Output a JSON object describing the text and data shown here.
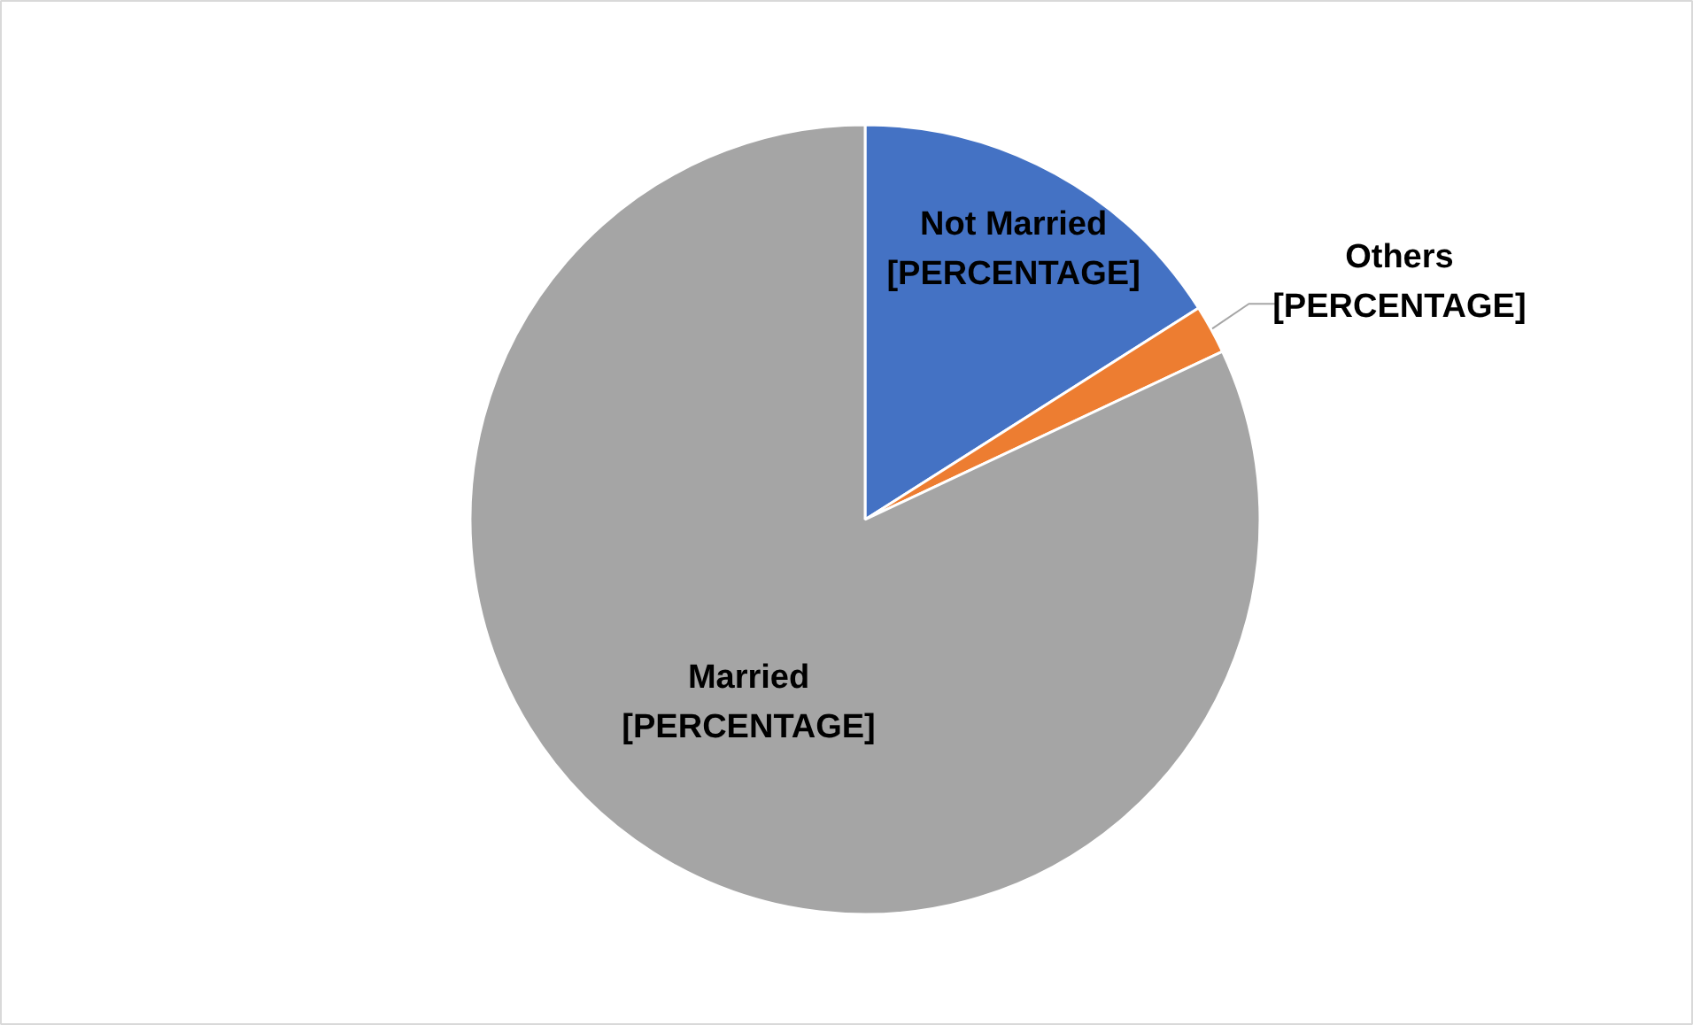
{
  "chart_data": {
    "type": "pie",
    "categories": [
      "Not Married",
      "Others",
      "Married"
    ],
    "values": [
      16,
      2,
      82
    ],
    "colors": [
      "#4472c4",
      "#ed7d31",
      "#a5a5a5"
    ],
    "value_labels": [
      "[PERCENTAGE]",
      "[PERCENTAGE]",
      "[PERCENTAGE]"
    ],
    "legend": false
  }
}
